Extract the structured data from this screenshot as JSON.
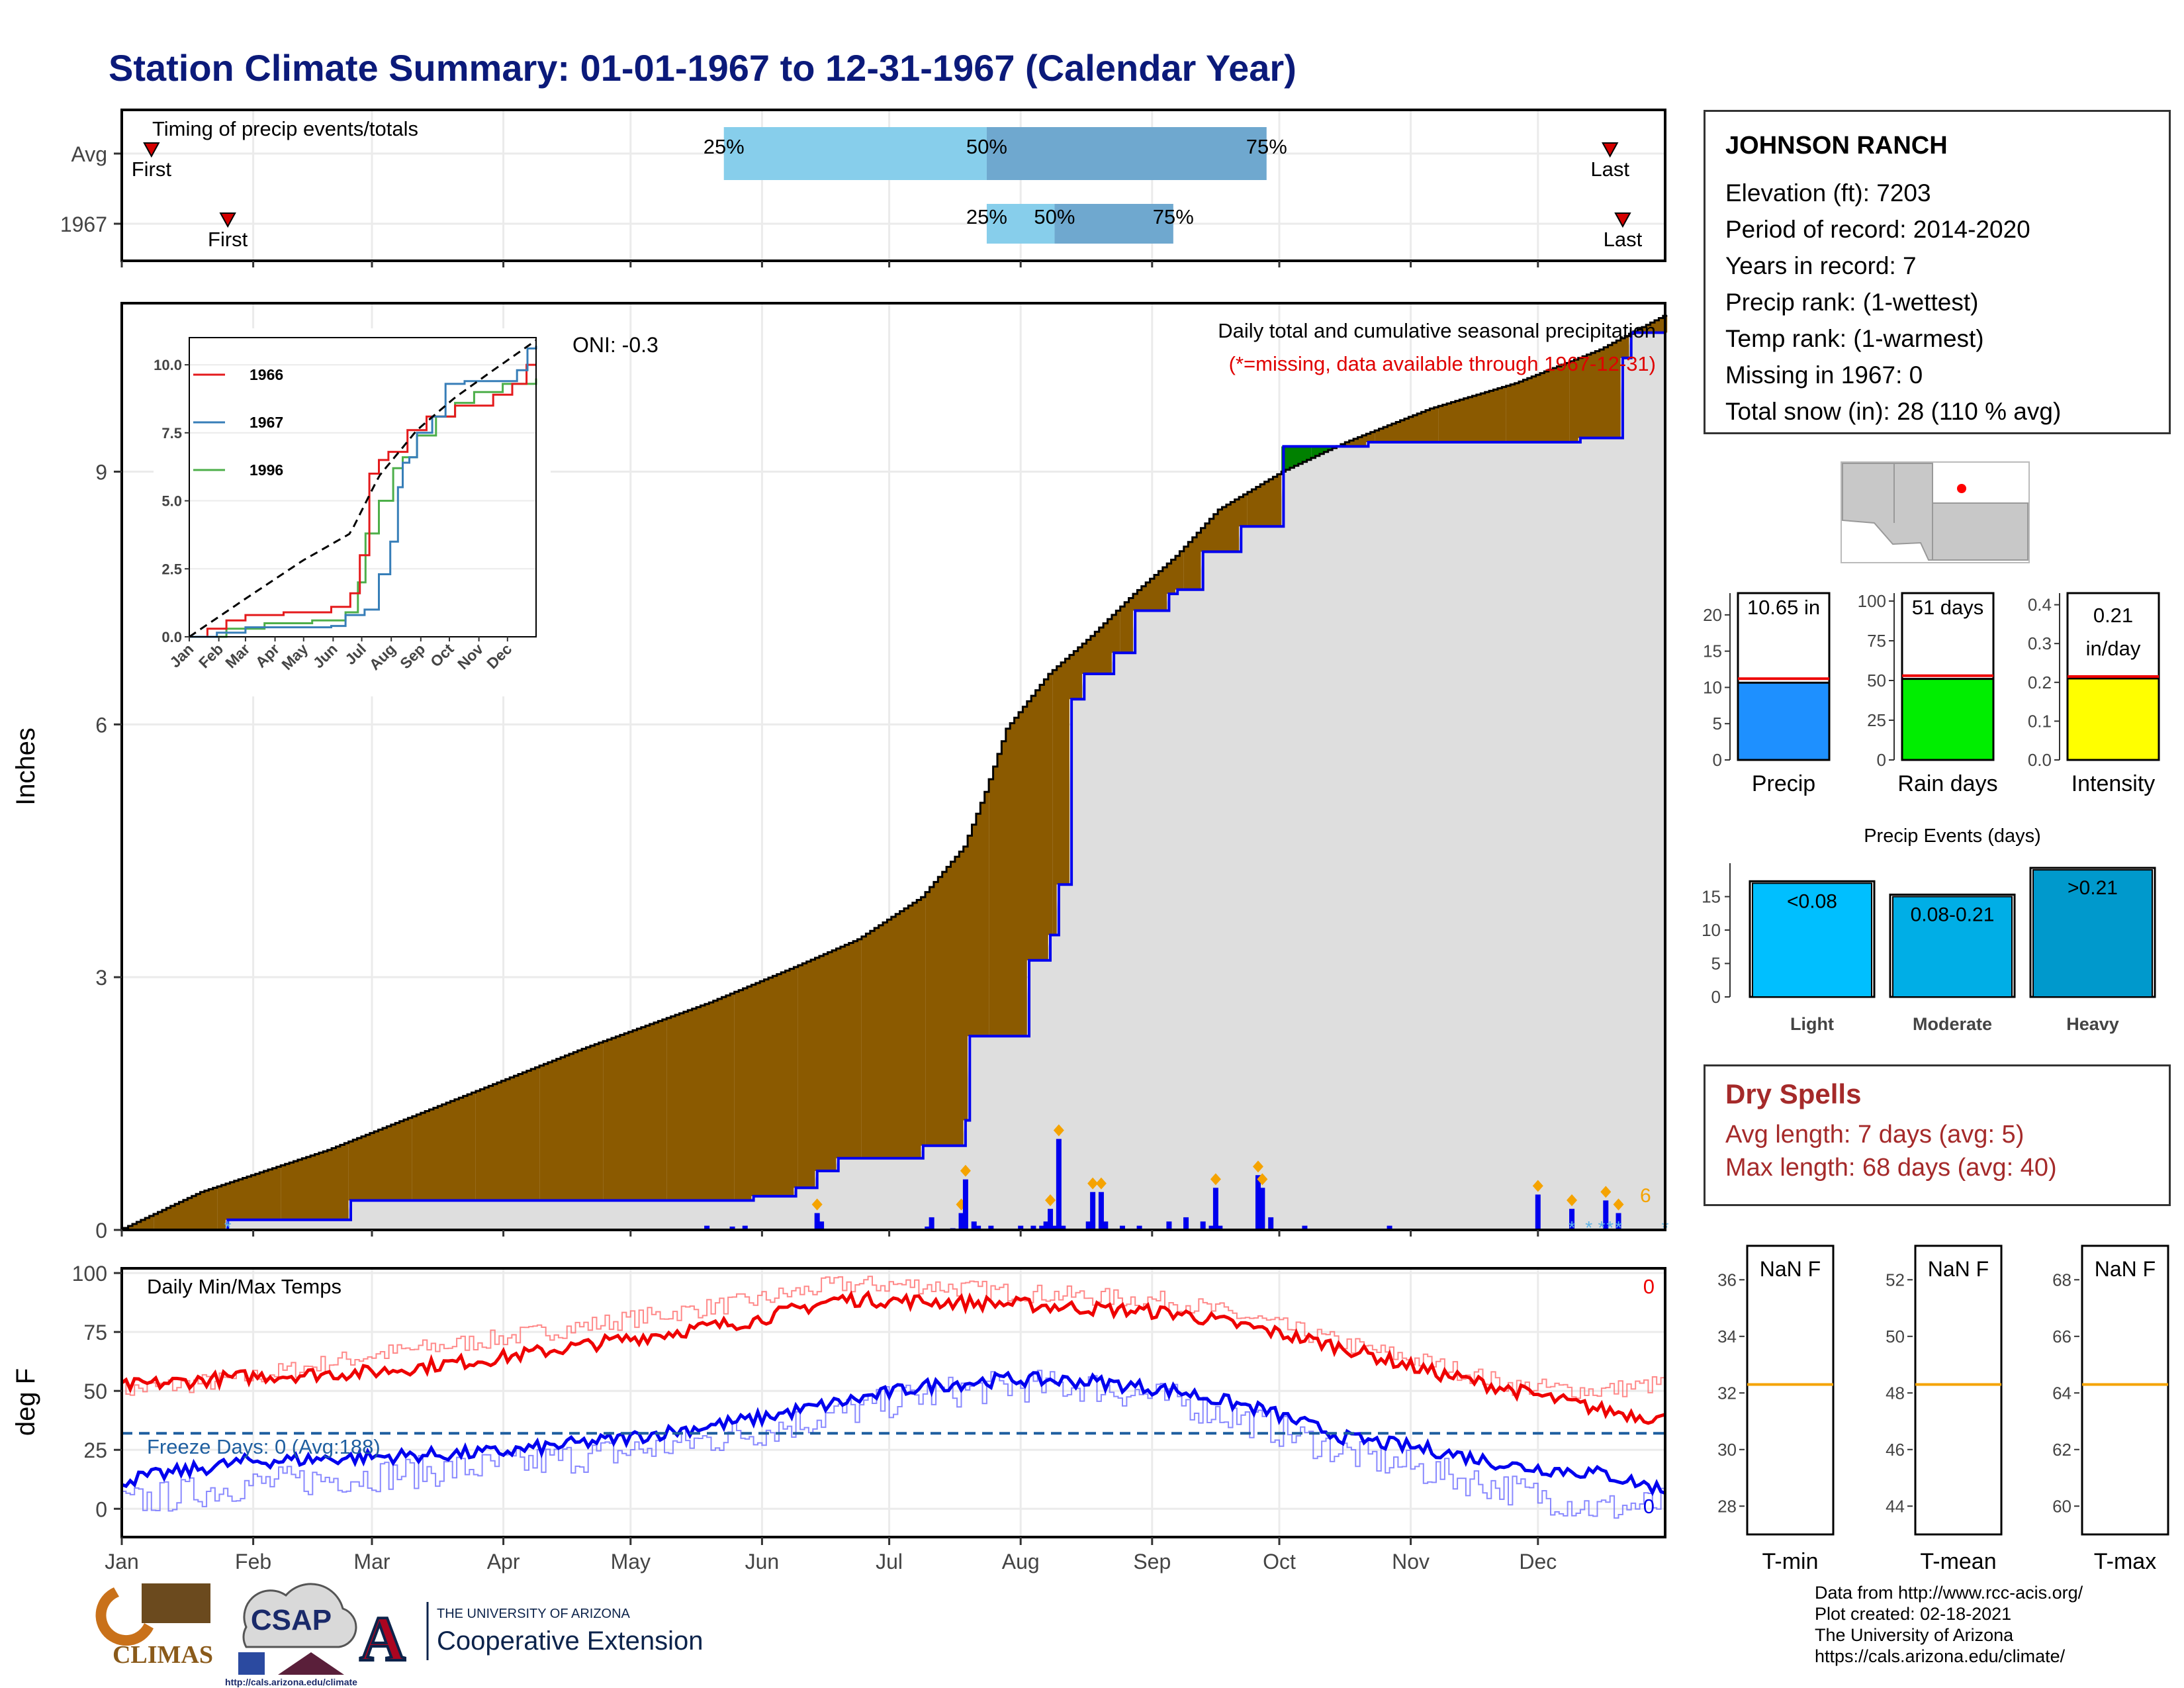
{
  "title": "Station Climate Summary: 01-01-1967 to 12-31-1967 (Calendar Year)",
  "timing_panel": {
    "label": "Timing of precip events/totals",
    "rows": [
      {
        "name": "Avg",
        "first_label": "First",
        "last_label": "Last",
        "p25_label": "25%",
        "p50_label": "50%",
        "p75_label": "75%",
        "first_day": 8,
        "p25_day": 143,
        "p50_day": 205,
        "p75_day": 271,
        "last_day": 352
      },
      {
        "name": "1967",
        "first_label": "First",
        "last_label": "Last",
        "p25_label": "25%",
        "p50_label": "50%",
        "p75_label": "75%",
        "first_day": 26,
        "p25_day": 205,
        "p50_day": 221,
        "p75_day": 249,
        "last_day": 355
      }
    ]
  },
  "main_panel": {
    "ylabel": "Inches",
    "yticks": [
      "0",
      "3",
      "6",
      "9"
    ],
    "oni": "ONI: -0.3",
    "subtitle1": "Daily total and cumulative seasonal precipitation",
    "subtitle2": "(*=missing, data available through 1967-12-31)",
    "snow_count": "6"
  },
  "inset": {
    "yticks": [
      "0.0",
      "2.5",
      "5.0",
      "7.5",
      "10.0"
    ],
    "months": [
      "Jan",
      "Feb",
      "Mar",
      "Apr",
      "May",
      "Jun",
      "Jul",
      "Aug",
      "Sep",
      "Oct",
      "Nov",
      "Dec"
    ],
    "legend": [
      {
        "name": "1966",
        "color": "#e41a1c"
      },
      {
        "name": "1967",
        "color": "#377eb8"
      },
      {
        "name": "1996",
        "color": "#4daf4a"
      }
    ]
  },
  "temp_panel": {
    "label": "Daily Min/Max Temps",
    "ylabel": "deg F",
    "yticks": [
      "0",
      "25",
      "50",
      "75",
      "100"
    ],
    "freeze_label": "Freeze Days: 0 (Avg:188)",
    "hot_count": "0",
    "cold_count": "0"
  },
  "months": [
    "Jan",
    "Feb",
    "Mar",
    "Apr",
    "May",
    "Jun",
    "Jul",
    "Aug",
    "Sep",
    "Oct",
    "Nov",
    "Dec"
  ],
  "station": {
    "name": "JOHNSON RANCH",
    "lines": [
      "Elevation (ft): 7203",
      "Period of record: 2014-2020",
      "Years in record: 7",
      "Precip rank:  (1-wettest)",
      "Temp rank:  (1-warmest)",
      "Missing in 1967: 0",
      "Total snow (in): 28 (110 % avg)"
    ]
  },
  "summary_bars": [
    {
      "name": "Precip",
      "label1": "10.65 in",
      "label2": "",
      "value": 10.65,
      "avg": 11.2,
      "ymax": 23,
      "ticks": [
        "0",
        "5",
        "10",
        "15",
        "20"
      ],
      "tick_vals": [
        0,
        5,
        10,
        15,
        20
      ],
      "color": "#1e90ff"
    },
    {
      "name": "Rain days",
      "label1": "51 days",
      "label2": "",
      "value": 51,
      "avg": 53,
      "ymax": 105,
      "ticks": [
        "0",
        "25",
        "50",
        "75",
        "100"
      ],
      "tick_vals": [
        0,
        25,
        50,
        75,
        100
      ],
      "color": "#00ee00"
    },
    {
      "name": "Intensity",
      "label1": "0.21",
      "label2": "in/day",
      "value": 0.21,
      "avg": 0.215,
      "ymax": 0.43,
      "ticks": [
        "0.0",
        "0.1",
        "0.2",
        "0.3",
        "0.4"
      ],
      "tick_vals": [
        0,
        0.1,
        0.2,
        0.3,
        0.4
      ],
      "color": "#ffff00"
    }
  ],
  "precip_events": {
    "title": "Precip Events (days)",
    "ticks": [
      "0",
      "5",
      "10",
      "15"
    ],
    "bars": [
      {
        "cat": "Light",
        "label": "<0.08",
        "value": 17,
        "avg": 17.3,
        "color": "#00bfff"
      },
      {
        "cat": "Moderate",
        "label": "0.08-0.21",
        "value": 15,
        "avg": 15.3,
        "color": "#00aee6"
      },
      {
        "cat": "Heavy",
        "label": ">0.21",
        "value": 19,
        "avg": 19.3,
        "color": "#0099cc"
      }
    ]
  },
  "dry_spells": {
    "title": "Dry Spells",
    "line1": "Avg length: 7 days (avg: 5)",
    "line2": "Max length: 68 days (avg: 40)"
  },
  "temp_boxes": [
    {
      "name": "T-min",
      "label": "NaN F",
      "ticks": [
        "28",
        "30",
        "32",
        "34",
        "36"
      ],
      "tick_vals": [
        28,
        30,
        32,
        34,
        36
      ],
      "ylim": [
        27,
        37.2
      ],
      "avg": 32.3
    },
    {
      "name": "T-mean",
      "label": "NaN F",
      "ticks": [
        "44",
        "46",
        "48",
        "50",
        "52"
      ],
      "tick_vals": [
        44,
        46,
        48,
        50,
        52
      ],
      "ylim": [
        43,
        53.2
      ],
      "avg": 48.3
    },
    {
      "name": "T-max",
      "label": "NaN F",
      "ticks": [
        "60",
        "62",
        "64",
        "66",
        "68"
      ],
      "tick_vals": [
        60,
        62,
        64,
        66,
        68
      ],
      "ylim": [
        59,
        69.2
      ],
      "avg": 64.3
    }
  ],
  "footer": [
    "Data from http://www.rcc-acis.org/",
    "Plot created: 02-18-2021",
    "The University of Arizona",
    "https://cals.arizona.edu/climate/"
  ],
  "logos": {
    "climas": "CLIMAS",
    "csap": "CSAP",
    "csap_url": "http://cals.arizona.edu/climate",
    "ua_top": "THE UNIVERSITY OF ARIZONA",
    "ua_bottom": "Cooperative Extension",
    "ua_mark": "A"
  },
  "chart_data": {
    "type": "area",
    "title": "Station Climate Summary: 01-01-1967 to 12-31-1967 (Calendar Year)",
    "ylabel": "Inches",
    "ylim": [
      0,
      11
    ],
    "x_unit": "day of year",
    "cumulative_avg": {
      "x": [
        1,
        20,
        50,
        80,
        110,
        140,
        160,
        175,
        190,
        200,
        205,
        210,
        220,
        230,
        240,
        250,
        260,
        275,
        290,
        310,
        330,
        350,
        365
      ],
      "y": [
        0,
        0.45,
        0.95,
        1.55,
        2.15,
        2.7,
        3.12,
        3.45,
        3.95,
        4.55,
        5.2,
        5.95,
        6.6,
        7.05,
        7.55,
        8.0,
        8.55,
        9.0,
        9.35,
        9.75,
        10.05,
        10.45,
        10.85
      ]
    },
    "cumulative_1967": {
      "x": [
        1,
        26,
        50,
        55,
        150,
        160,
        165,
        170,
        190,
        200,
        201,
        215,
        220,
        222,
        225,
        228,
        235,
        240,
        248,
        250,
        256,
        265,
        275,
        295,
        345,
        355,
        357,
        365
      ],
      "y": [
        0,
        0.12,
        0.12,
        0.35,
        0.4,
        0.5,
        0.7,
        0.85,
        1.0,
        1.3,
        2.3,
        3.2,
        3.5,
        4.1,
        6.3,
        6.6,
        6.85,
        7.35,
        7.55,
        7.6,
        8.05,
        8.35,
        9.3,
        9.35,
        9.4,
        10.35,
        10.65,
        10.65
      ]
    },
    "daily_1967": {
      "x": [
        139,
        145,
        148,
        165,
        166,
        191,
        192,
        197,
        199,
        200,
        202,
        203,
        206,
        213,
        216,
        218,
        219,
        220,
        221,
        222,
        223,
        229,
        230,
        232,
        233,
        237,
        241,
        248,
        252,
        256,
        258,
        259,
        260,
        269,
        270,
        272,
        280,
        300,
        335,
        343,
        351,
        354
      ],
      "y": [
        0.05,
        0.04,
        0.05,
        0.2,
        0.1,
        0.04,
        0.15,
        0.02,
        0.2,
        0.6,
        0.1,
        0.05,
        0.05,
        0.05,
        0.05,
        0.05,
        0.1,
        0.25,
        0.05,
        1.08,
        0.05,
        0.1,
        0.45,
        0.45,
        0.1,
        0.05,
        0.05,
        0.1,
        0.15,
        0.1,
        0.05,
        0.5,
        0.05,
        0.65,
        0.5,
        0.15,
        0.05,
        0.05,
        0.42,
        0.25,
        0.35,
        0.2
      ]
    },
    "temps": {
      "x_days": [
        1,
        30,
        60,
        90,
        120,
        150,
        170,
        190,
        210,
        230,
        250,
        270,
        290,
        310,
        330,
        350,
        365
      ],
      "tmax_1967": [
        52,
        56,
        58,
        64,
        72,
        80,
        89,
        88,
        87,
        85,
        83,
        76,
        68,
        58,
        50,
        42,
        38
      ],
      "tmax_avg": [
        50,
        55,
        65,
        72,
        80,
        88,
        95,
        95,
        92,
        90,
        88,
        80,
        70,
        62,
        52,
        50,
        53
      ],
      "tmin_1967": [
        12,
        20,
        22,
        24,
        30,
        38,
        45,
        52,
        55,
        54,
        50,
        42,
        30,
        25,
        18,
        15,
        8
      ],
      "tmin_avg": [
        2,
        10,
        14,
        18,
        24,
        32,
        40,
        48,
        52,
        52,
        46,
        36,
        24,
        16,
        8,
        0,
        2
      ],
      "freeze_line": 32,
      "ylim": [
        -12,
        102
      ]
    }
  }
}
